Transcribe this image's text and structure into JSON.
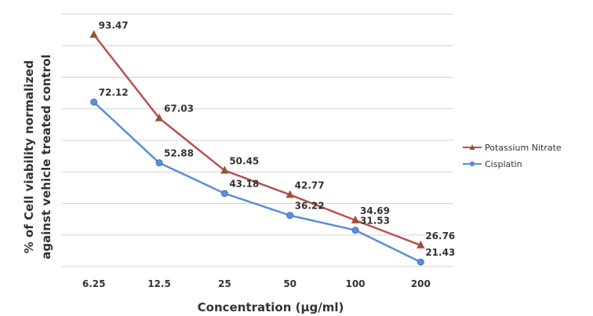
{
  "chart_data": {
    "type": "line",
    "xlabel": "Concentration (µg/ml)",
    "ylabel_line1": "% of Cell viability normalized",
    "ylabel_line2": "against vehicle treated control",
    "categories": [
      "6.25",
      "12.5",
      "25",
      "50",
      "100",
      "200"
    ],
    "series": [
      {
        "name": "Potassium Nitrate",
        "values": [
          93.47,
          67.03,
          50.45,
          42.77,
          34.69,
          26.76
        ],
        "labels": [
          "93.47",
          "67.03",
          "50.45",
          "42.77",
          "34.69",
          "26.76"
        ],
        "color": "#b8514e",
        "marker": "triangle"
      },
      {
        "name": "Cisplatin",
        "values": [
          72.12,
          52.88,
          43.18,
          36.22,
          31.53,
          21.43
        ],
        "labels": [
          "72.12",
          "52.88",
          "43.18",
          "36.22",
          "31.53",
          "21.43"
        ],
        "color": "#5b8fd4",
        "marker": "diamond"
      }
    ],
    "ylim": [
      20,
      100
    ],
    "ygrid_step": 10,
    "grid": true,
    "legend": "right"
  }
}
